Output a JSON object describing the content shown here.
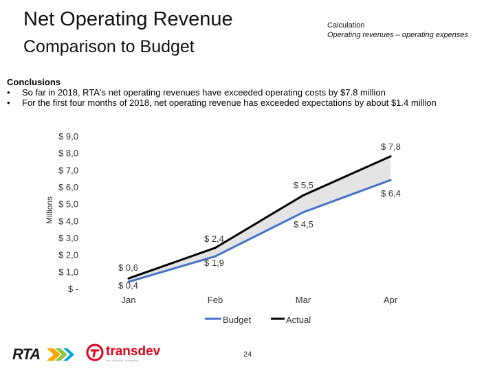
{
  "header": {
    "title": "Net Operating Revenue",
    "subtitle": "Comparison to Budget",
    "calc_heading": "Calculation",
    "calc_body": "Operating revenues – operating expenses"
  },
  "conclusions": {
    "heading": "Conclusions",
    "bullet": "•",
    "items": [
      "So far in 2018, RTA's net operating revenues have exceeded operating costs by $7.8 million",
      "For the first four months of 2018, net operating revenue has exceeded expectations by about $1.4 million"
    ]
  },
  "footer": {
    "page_number": "24",
    "rta_logo": "RTA",
    "transdev_logo": "transdev",
    "transdev_tagline": "the mobility company"
  },
  "colors": {
    "budget": "#4472c4",
    "actual": "#000000",
    "fill": "#e4e4e4"
  },
  "chart_data": {
    "type": "line",
    "categories": [
      "Jan",
      "Feb",
      "Mar",
      "Apr"
    ],
    "ylabel": "Millions",
    "ylim": [
      0,
      9
    ],
    "yticks": [
      0,
      1,
      2,
      3,
      4,
      5,
      6,
      7,
      8,
      9
    ],
    "ytick_labels": [
      "$ -",
      "$ 1,0",
      "$ 2,0",
      "$ 3,0",
      "$ 4,0",
      "$ 5,0",
      "$ 6,0",
      "$ 7,0",
      "$ 8,0",
      "$ 9,0"
    ],
    "legend_position": "bottom",
    "series": [
      {
        "name": "Budget",
        "values": [
          0.4,
          1.9,
          4.5,
          6.4
        ],
        "labels": [
          "$ 0,4",
          "$ 1,9",
          "$ 4,5",
          "$ 6,4"
        ]
      },
      {
        "name": "Actual",
        "values": [
          0.6,
          2.4,
          5.5,
          7.8
        ],
        "labels": [
          "$ 0,6",
          "$ 2,4",
          "$ 5,5",
          "$ 7,8"
        ]
      }
    ]
  }
}
